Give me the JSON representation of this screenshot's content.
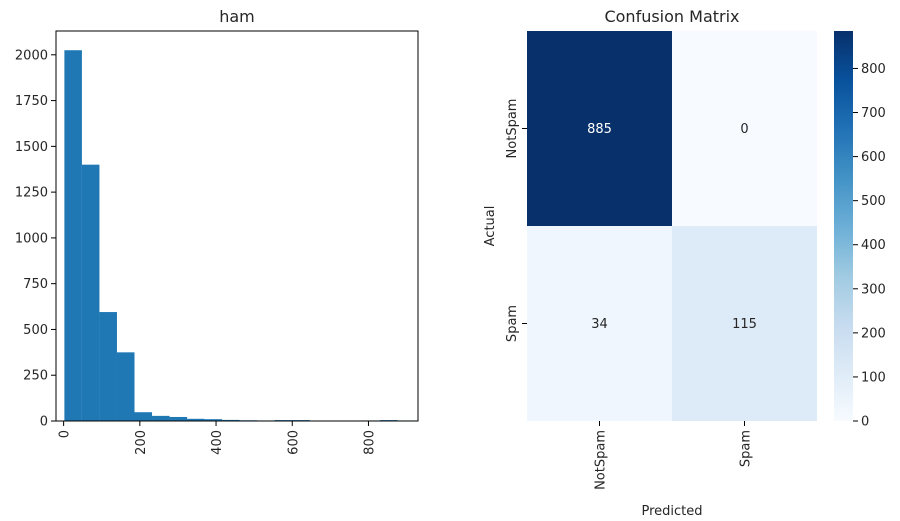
{
  "chart_data": [
    {
      "type": "bar",
      "title": "ham",
      "xlabel": "",
      "ylabel": "",
      "xlim": [
        -20,
        930
      ],
      "ylim": [
        0,
        2130
      ],
      "x_ticks": [
        0,
        200,
        400,
        600,
        800
      ],
      "y_ticks": [
        0,
        250,
        500,
        750,
        1000,
        1250,
        1500,
        1750,
        2000
      ],
      "bin_width": 46,
      "bin_edges_start": 2,
      "values": [
        2025,
        1400,
        595,
        375,
        48,
        28,
        22,
        12,
        10,
        6,
        4,
        3,
        5,
        5,
        2,
        2,
        1,
        3,
        5,
        3
      ],
      "color": "#1f77b4",
      "grid": false
    },
    {
      "type": "heatmap",
      "title": "Confusion Matrix",
      "xlabel": "Predicted",
      "ylabel": "Actual",
      "x_categories": [
        "NotSpam",
        "Spam"
      ],
      "y_categories": [
        "NotSpam",
        "Spam"
      ],
      "values": [
        [
          885,
          0
        ],
        [
          34,
          115
        ]
      ],
      "colorbar": {
        "min": 0,
        "max": 885,
        "ticks": [
          0,
          100,
          200,
          300,
          400,
          500,
          600,
          700,
          800
        ]
      },
      "colormap": "Blues",
      "colors": {
        "low": "#f7fbff",
        "high": "#08306b"
      }
    }
  ]
}
